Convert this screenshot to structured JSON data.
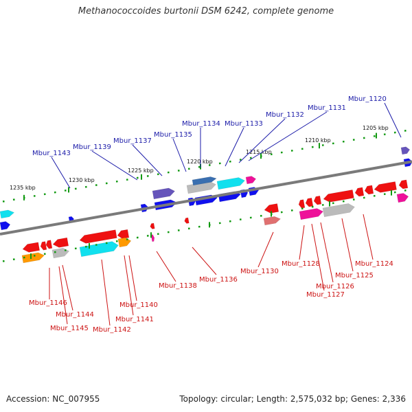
{
  "title": "Methanococcoides burtonii DSM 6242, complete genome",
  "accession": "Accession: NC_007955",
  "topology": "Topology: circular; Length: 2,575,032 bp; Genes: 2,336",
  "colors": {
    "backbone": "#7a7a7a",
    "gene_blue": "#1010ee",
    "gene_red": "#ee1111",
    "gene_cyan": "#11e0ee",
    "gene_magenta": "#ee1199",
    "gene_grey": "#bbbbbb",
    "gene_orange": "#ff9900",
    "gene_purple": "#6655bb",
    "label_blue": "#1a1aa8",
    "label_red": "#cc1111",
    "tick_green": "#119911"
  },
  "kbp_ticks": [
    "1235 kbp",
    "1230 kbp",
    "1225 kbp",
    "1220 kbp",
    "1215 kbp",
    "1210 kbp",
    "1205 kbp"
  ],
  "top_labels": [
    "Mbur_1143",
    "Mbur_1139",
    "Mbur_1137",
    "Mbur_1135",
    "Mbur_1134",
    "Mbur_1133",
    "Mbur_1132",
    "Mbur_1131",
    "Mbur_1120"
  ],
  "bottom_labels": [
    "Mbur_1146",
    "Mbur_1144",
    "Mbur_1145",
    "Mbur_1142",
    "Mbur_1141",
    "Mbur_1140",
    "Mbur_1138",
    "Mbur_1136",
    "Mbur_1130",
    "Mbur_1128",
    "Mbur_1127",
    "Mbur_1126",
    "Mbur_1125",
    "Mbur_1124"
  ]
}
